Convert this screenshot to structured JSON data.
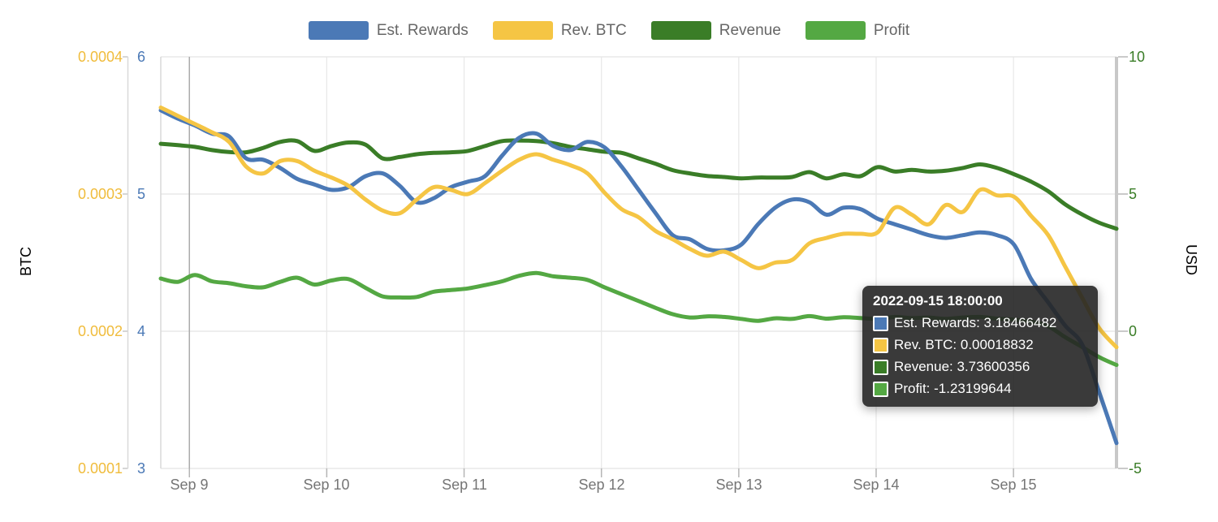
{
  "chart_data": {
    "type": "line",
    "title": "",
    "x_axis": {
      "range_hours": [
        -5,
        162
      ],
      "tick_hours": [
        0,
        24,
        48,
        72,
        96,
        120,
        144
      ],
      "tick_labels": [
        "Sep 9",
        "Sep 10",
        "Sep 11",
        "Sep 12",
        "Sep 13",
        "Sep 14",
        "Sep 15"
      ],
      "grid": true
    },
    "y_axes": {
      "btc": {
        "title": "BTC",
        "color": "#f0bc3c",
        "range": [
          0.0001,
          0.0004
        ],
        "tick_labels": [
          "0.0004",
          "0.0003",
          "0.0002",
          "0.0001"
        ]
      },
      "est": {
        "title": "",
        "color": "#4b79b6",
        "range": [
          3,
          6
        ],
        "tick_labels": [
          "6",
          "5",
          "4",
          "3"
        ]
      },
      "usd": {
        "title": "USD",
        "color": "#3a7d27",
        "range": [
          -5,
          10
        ],
        "tick_labels": [
          "10",
          "5",
          "0",
          "-5"
        ]
      }
    },
    "series": [
      {
        "name": "Est. Rewards",
        "color": "#4b79b6",
        "axis": "est",
        "values": [
          5.61,
          5.55,
          5.5,
          5.44,
          5.42,
          5.26,
          5.25,
          5.19,
          5.11,
          5.07,
          5.03,
          5.05,
          5.13,
          5.15,
          5.06,
          4.94,
          4.97,
          5.05,
          5.09,
          5.13,
          5.28,
          5.41,
          5.44,
          5.35,
          5.32,
          5.38,
          5.34,
          5.2,
          5.03,
          4.86,
          4.7,
          4.67,
          4.6,
          4.59,
          4.63,
          4.78,
          4.9,
          4.96,
          4.94,
          4.85,
          4.9,
          4.89,
          4.82,
          4.78,
          4.74,
          4.7,
          4.68,
          4.7,
          4.72,
          4.7,
          4.63,
          4.38,
          4.21,
          4.04,
          3.9,
          3.55,
          3.18466482
        ]
      },
      {
        "name": "Rev. BTC",
        "color": "#f5c544",
        "axis": "btc",
        "values": [
          0.000363,
          0.000357,
          0.000351,
          0.000345,
          0.000338,
          0.00032,
          0.000315,
          0.000324,
          0.000324,
          0.000317,
          0.000312,
          0.000306,
          0.000296,
          0.000288,
          0.000286,
          0.000296,
          0.000305,
          0.000303,
          0.0003,
          0.000308,
          0.000317,
          0.000325,
          0.000329,
          0.000325,
          0.000321,
          0.000315,
          0.000301,
          0.000289,
          0.000283,
          0.000273,
          0.000267,
          0.00026,
          0.000255,
          0.000258,
          0.000252,
          0.000246,
          0.00025,
          0.000252,
          0.000264,
          0.000268,
          0.000271,
          0.000271,
          0.000272,
          0.00029,
          0.000285,
          0.000278,
          0.000292,
          0.000287,
          0.000303,
          0.000299,
          0.000298,
          0.000284,
          0.00027,
          0.000247,
          0.000224,
          0.000202,
          0.00018832
        ]
      },
      {
        "name": "Revenue",
        "color": "#3a7d27",
        "axis": "usd",
        "values": [
          6.83,
          6.78,
          6.72,
          6.6,
          6.53,
          6.52,
          6.68,
          6.9,
          6.93,
          6.57,
          6.75,
          6.88,
          6.8,
          6.3,
          6.35,
          6.45,
          6.5,
          6.52,
          6.57,
          6.75,
          6.93,
          6.95,
          6.93,
          6.85,
          6.72,
          6.63,
          6.54,
          6.5,
          6.3,
          6.1,
          5.87,
          5.75,
          5.66,
          5.62,
          5.57,
          5.6,
          5.6,
          5.62,
          5.8,
          5.57,
          5.72,
          5.65,
          5.98,
          5.82,
          5.88,
          5.82,
          5.85,
          5.95,
          6.08,
          5.95,
          5.72,
          5.45,
          5.1,
          4.62,
          4.25,
          3.95,
          3.73600356
        ]
      },
      {
        "name": "Profit",
        "color": "#54a843",
        "axis": "usd",
        "values": [
          1.92,
          1.8,
          2.05,
          1.82,
          1.75,
          1.64,
          1.6,
          1.8,
          1.95,
          1.7,
          1.85,
          1.9,
          1.58,
          1.27,
          1.23,
          1.25,
          1.44,
          1.5,
          1.56,
          1.68,
          1.82,
          2.02,
          2.12,
          2.0,
          1.95,
          1.87,
          1.6,
          1.35,
          1.1,
          0.85,
          0.62,
          0.5,
          0.54,
          0.52,
          0.45,
          0.38,
          0.47,
          0.45,
          0.55,
          0.46,
          0.51,
          0.48,
          0.45,
          0.52,
          0.48,
          0.5,
          0.45,
          0.5,
          0.52,
          0.46,
          0.42,
          0.35,
          0.18,
          -0.22,
          -0.58,
          -0.95,
          -1.23199644
        ]
      }
    ],
    "draw_order": [
      2,
      3,
      0,
      1
    ],
    "legend": [
      "Est. Rewards",
      "Rev. BTC",
      "Revenue",
      "Profit"
    ],
    "hover": {
      "title": "2022-09-15 18:00:00",
      "hour": 162,
      "rows": [
        {
          "series": "Est. Rewards",
          "value": "3.18466482",
          "color": "#4b79b6"
        },
        {
          "series": "Rev. BTC",
          "value": "0.00018832",
          "color": "#f5c544"
        },
        {
          "series": "Revenue",
          "value": "3.73600356",
          "color": "#3a7d27"
        },
        {
          "series": "Profit",
          "value": "-1.23199644",
          "color": "#54a843"
        }
      ]
    }
  }
}
